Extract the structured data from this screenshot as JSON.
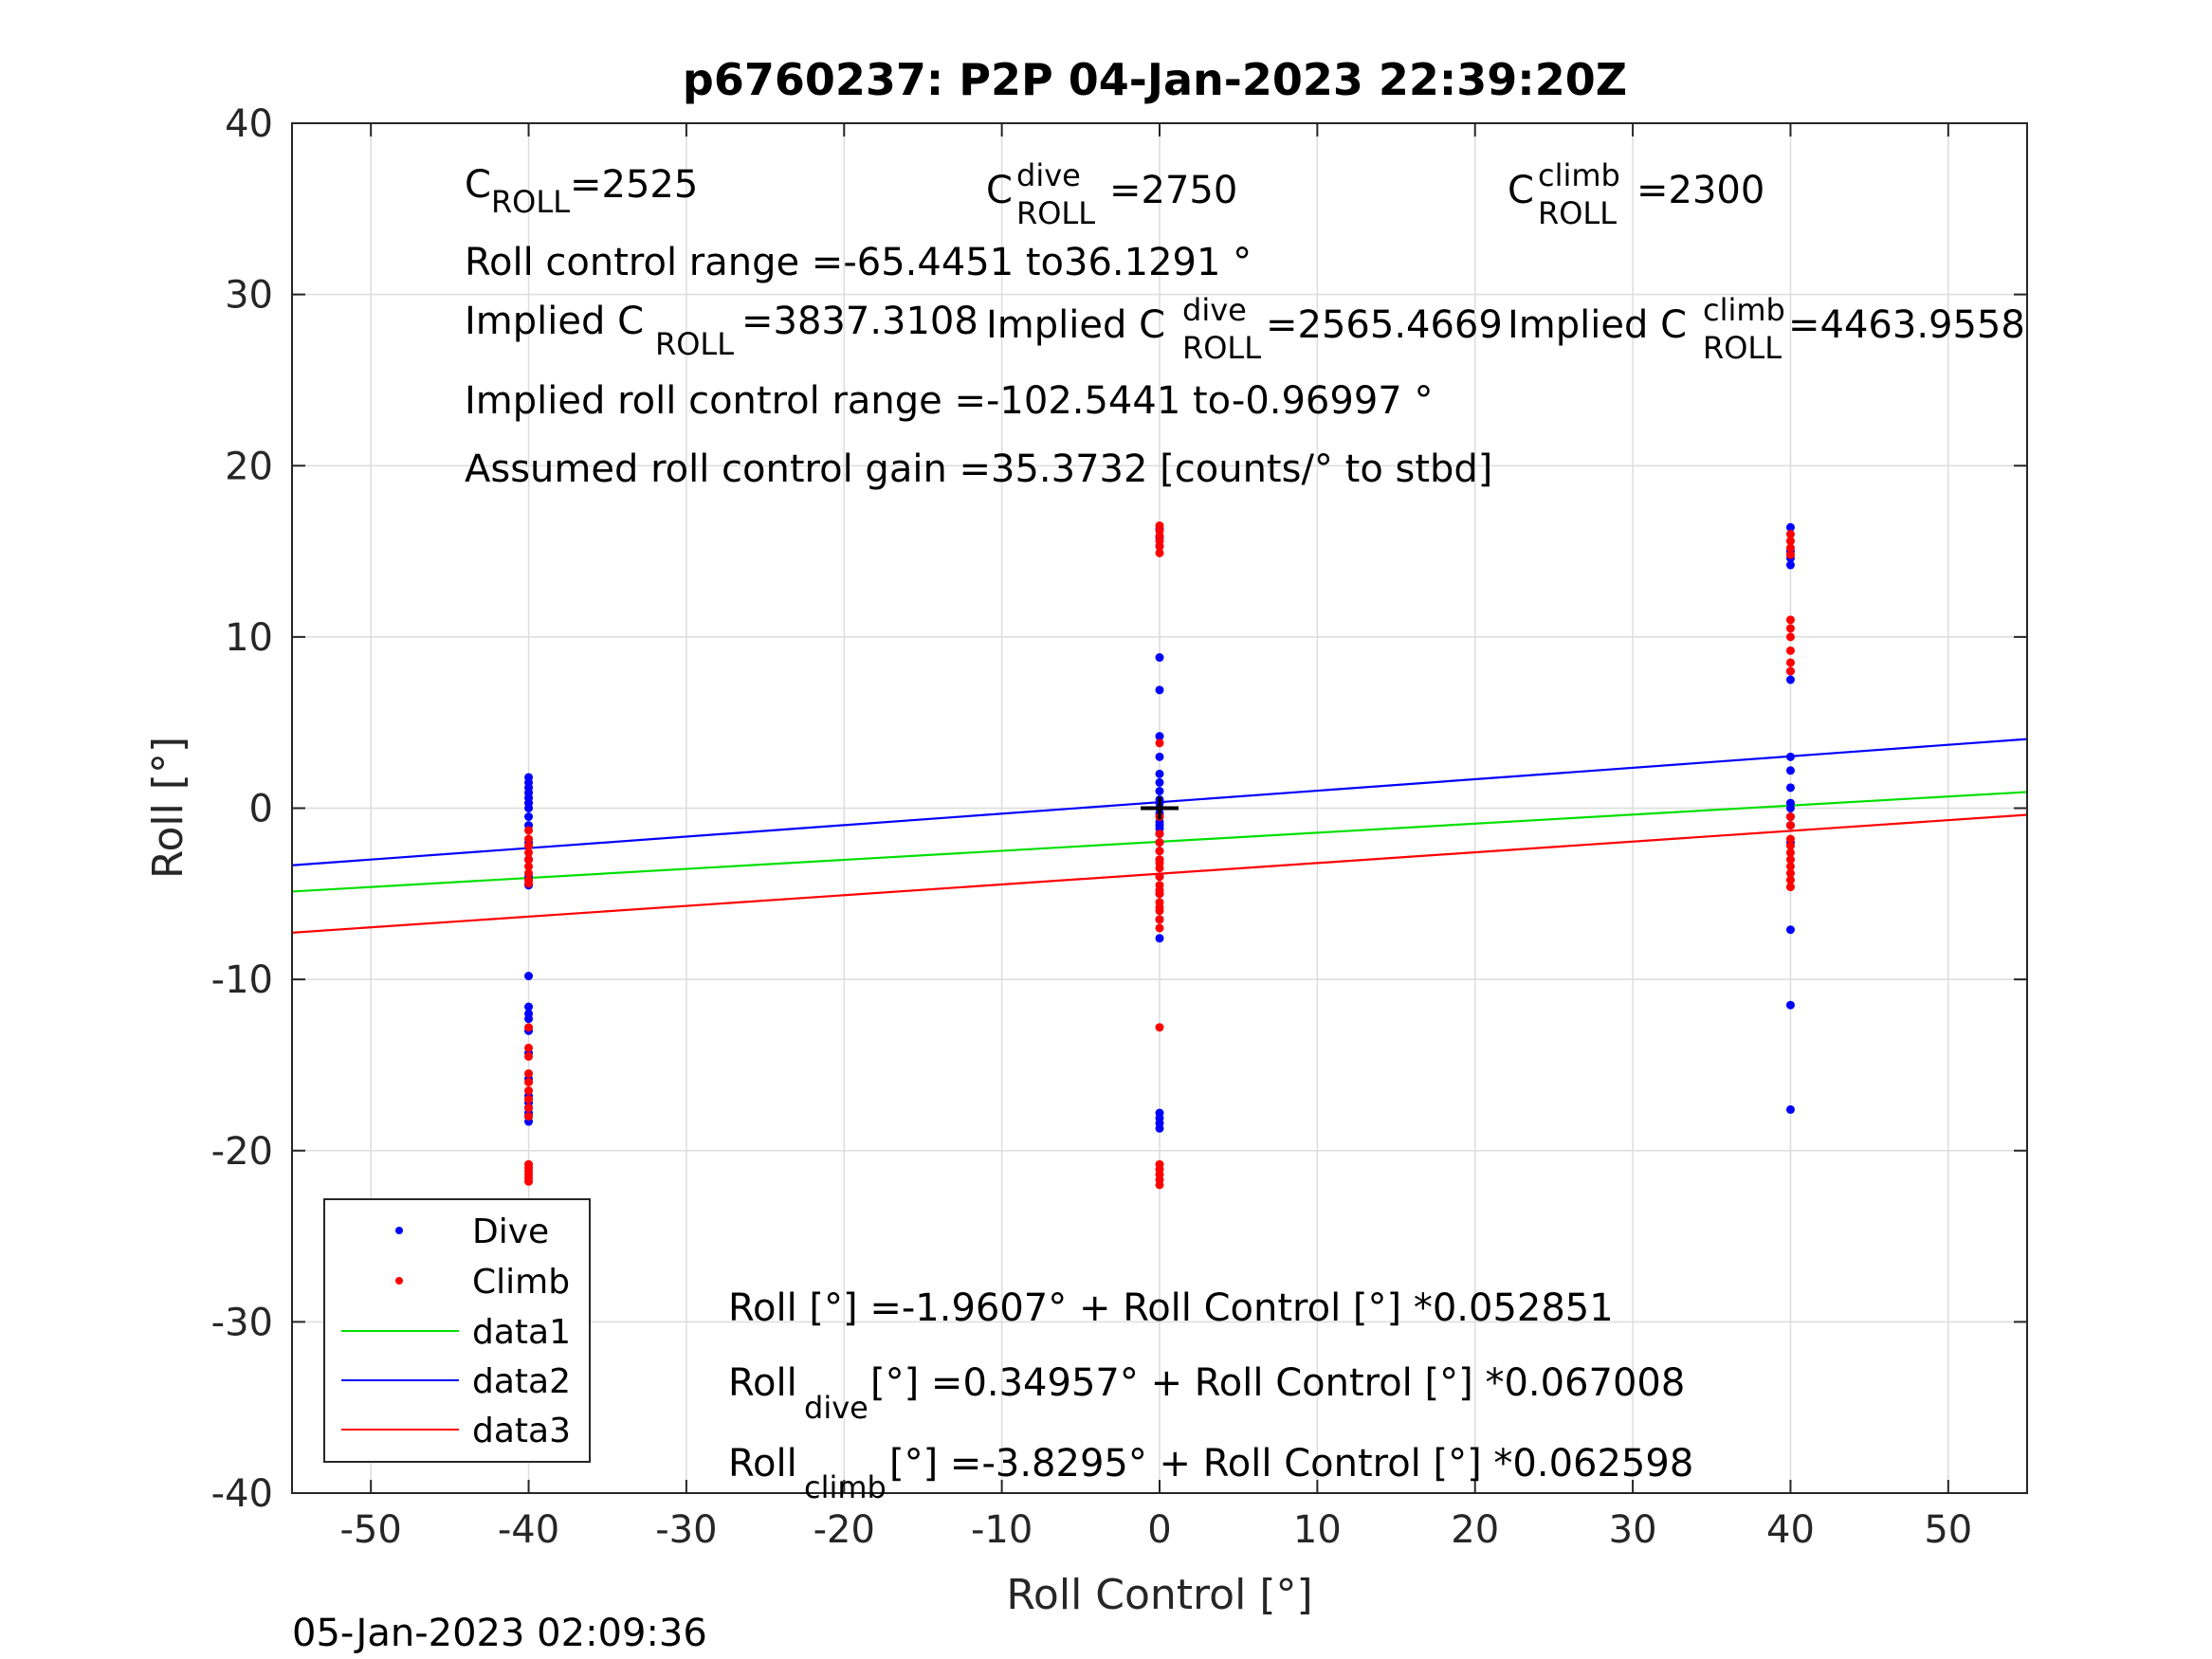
{
  "chart_data": {
    "type": "scatter",
    "title": "p6760237: P2P 04-Jan-2023 22:39:20Z",
    "xlabel": "Roll Control [°]",
    "ylabel": "Roll [°]",
    "xlim": [
      -55,
      55
    ],
    "ylim": [
      -40,
      40
    ],
    "xticks": [
      "-50",
      "-40",
      "-30",
      "-20",
      "-10",
      "0",
      "10",
      "20",
      "30",
      "40",
      "50"
    ],
    "yticks": [
      "40",
      "30",
      "20",
      "10",
      "0",
      "-10",
      "-20",
      "-30",
      "-40"
    ],
    "grid": true,
    "legend_position": "bottom-left",
    "timestamp": "05-Jan-2023 02:09:36",
    "colors": {
      "dive": "#0000ff",
      "climb": "#ff0000",
      "data1": "#00e000",
      "data2": "#0000ff",
      "data3": "#ff0000"
    },
    "series": [
      {
        "name": "Dive",
        "mode": "markers",
        "color": "#0000ff",
        "x": [
          -40,
          -40,
          -40,
          -40,
          -40,
          -40,
          -40,
          -40,
          -40,
          -40,
          -40,
          -40,
          -40,
          -40,
          -40,
          -40,
          -40,
          -40,
          -40,
          -40,
          -40,
          -40,
          -40,
          -40,
          -40,
          -40,
          -40,
          0,
          0,
          0,
          0,
          0,
          0,
          0,
          0,
          0,
          0,
          0,
          0,
          0,
          0,
          0,
          0,
          0,
          0,
          0,
          0,
          0,
          0,
          0,
          0,
          0,
          0,
          0,
          0,
          0,
          0,
          40,
          40,
          40,
          40,
          40,
          40,
          40,
          40,
          40,
          40,
          40,
          40,
          40,
          40,
          40,
          40,
          40
        ],
        "y": [
          1.8,
          1.5,
          1.2,
          0.9,
          0.6,
          0.3,
          0.0,
          -0.5,
          -1.0,
          -2.0,
          -3.0,
          -4.0,
          -4.5,
          -9.8,
          -11.6,
          -12.0,
          -12.3,
          -13.0,
          -14.3,
          -15.8,
          -16.8,
          -17.2,
          -17.5,
          -17.8,
          -18.0,
          -18.3,
          -4.2,
          16.3,
          15.8,
          15.3,
          8.8,
          6.9,
          4.2,
          3.0,
          2.0,
          1.5,
          1.0,
          0.5,
          0.0,
          -0.5,
          -1.0,
          -1.5,
          -2.0,
          -2.5,
          -3.0,
          -4.0,
          -5.0,
          -6.5,
          -7.6,
          -17.8,
          -18.1,
          -18.4,
          -18.7,
          -1.2,
          -0.8,
          -0.3,
          0.3,
          16.4,
          15.0,
          14.6,
          14.2,
          8.0,
          7.5,
          3.0,
          2.2,
          1.2,
          0.3,
          0.0,
          -0.5,
          -1.0,
          -2.0,
          -7.1,
          -11.5,
          -17.6
        ]
      },
      {
        "name": "Climb",
        "mode": "markers",
        "color": "#ff0000",
        "x": [
          -40,
          -40,
          -40,
          -40,
          -40,
          -40,
          -40,
          -40,
          -40,
          -40,
          -40,
          -40,
          -40,
          -40,
          -40,
          -40,
          -40,
          -40,
          -40,
          -40,
          -40,
          -40,
          -40,
          -40,
          0,
          0,
          0,
          0,
          0,
          0,
          0,
          0,
          0,
          0,
          0,
          0,
          0,
          0,
          0,
          0,
          0,
          0,
          0,
          0,
          0,
          0,
          0,
          0,
          0,
          0,
          0,
          0,
          0,
          40,
          40,
          40,
          40,
          40,
          40,
          40,
          40,
          40,
          40,
          40,
          40,
          40,
          40,
          40,
          40,
          40,
          40,
          40,
          40
        ],
        "y": [
          -1.3,
          -1.8,
          -2.2,
          -2.6,
          -3.0,
          -3.4,
          -3.8,
          -4.2,
          -4.4,
          -12.8,
          -14.0,
          -14.5,
          -15.5,
          -16.5,
          -17.0,
          -17.5,
          -18.0,
          -20.8,
          -21.0,
          -21.2,
          -21.4,
          -21.6,
          -21.8,
          -16.0,
          16.5,
          16.2,
          15.9,
          15.6,
          15.3,
          14.9,
          3.8,
          -0.5,
          -1.5,
          -2.0,
          -2.5,
          -3.0,
          -3.5,
          -4.0,
          -4.5,
          -5.0,
          -5.5,
          -6.0,
          -6.5,
          -7.0,
          -12.8,
          -20.8,
          -21.1,
          -21.4,
          -21.7,
          -22.0,
          -3.2,
          -4.8,
          -5.8,
          16.0,
          15.6,
          15.2,
          14.8,
          11.0,
          10.5,
          10.0,
          9.2,
          8.5,
          8.0,
          -1.8,
          -2.2,
          -2.6,
          -3.0,
          -3.4,
          -3.8,
          -4.2,
          -4.6,
          -0.5,
          -1.0
        ]
      },
      {
        "name": "data1",
        "mode": "line",
        "color": "#00e000",
        "x": [
          -55,
          55
        ],
        "y": [
          -4.8675,
          0.9461
        ]
      },
      {
        "name": "data2",
        "mode": "line",
        "color": "#0000ff",
        "x": [
          -55,
          55
        ],
        "y": [
          -3.3358,
          4.035
        ]
      },
      {
        "name": "data3",
        "mode": "line",
        "color": "#ff0000",
        "x": [
          -55,
          55
        ],
        "y": [
          -7.2724,
          -0.3866
        ]
      }
    ],
    "origin_marker": {
      "x": 0,
      "y": 0,
      "color": "#000000"
    },
    "annotations": {
      "c_roll": {
        "base": "C",
        "sub": "ROLL",
        "value": "=2525"
      },
      "c_roll_dive": {
        "base": "C",
        "sup": "dive",
        "sub": "ROLL",
        "value": "=2750"
      },
      "c_roll_climb": {
        "base": "C",
        "sup": "climb",
        "sub": "ROLL",
        "value": "=2300"
      },
      "roll_range": "Roll control range =-65.4451 to36.1291 °",
      "implied_c_roll": {
        "prefix": "Implied C",
        "sub": "ROLL",
        "value": " =3837.3108"
      },
      "implied_c_roll_dive": {
        "prefix": "Implied C",
        "sup": "dive",
        "sub": "ROLL",
        "value": " =2565.4669"
      },
      "implied_c_roll_climb": {
        "prefix": "Implied C",
        "sup": "climb",
        "sub": "ROLL",
        "value": " =4463.9558"
      },
      "implied_range": "Implied roll control range =-102.5441 to-0.96997 °",
      "gain": "Assumed roll control gain =35.3732 [counts/° to stbd]",
      "fit_all": "Roll [°] =-1.9607° + Roll Control [°] *0.052851",
      "fit_dive": {
        "prefix": "Roll",
        "sub": "dive",
        "value": " [°] =0.34957° + Roll Control [°] *0.067008"
      },
      "fit_climb": {
        "prefix": "Roll",
        "sub": "climb",
        "value": " [°] =-3.8295° + Roll Control [°] *0.062598"
      }
    }
  }
}
